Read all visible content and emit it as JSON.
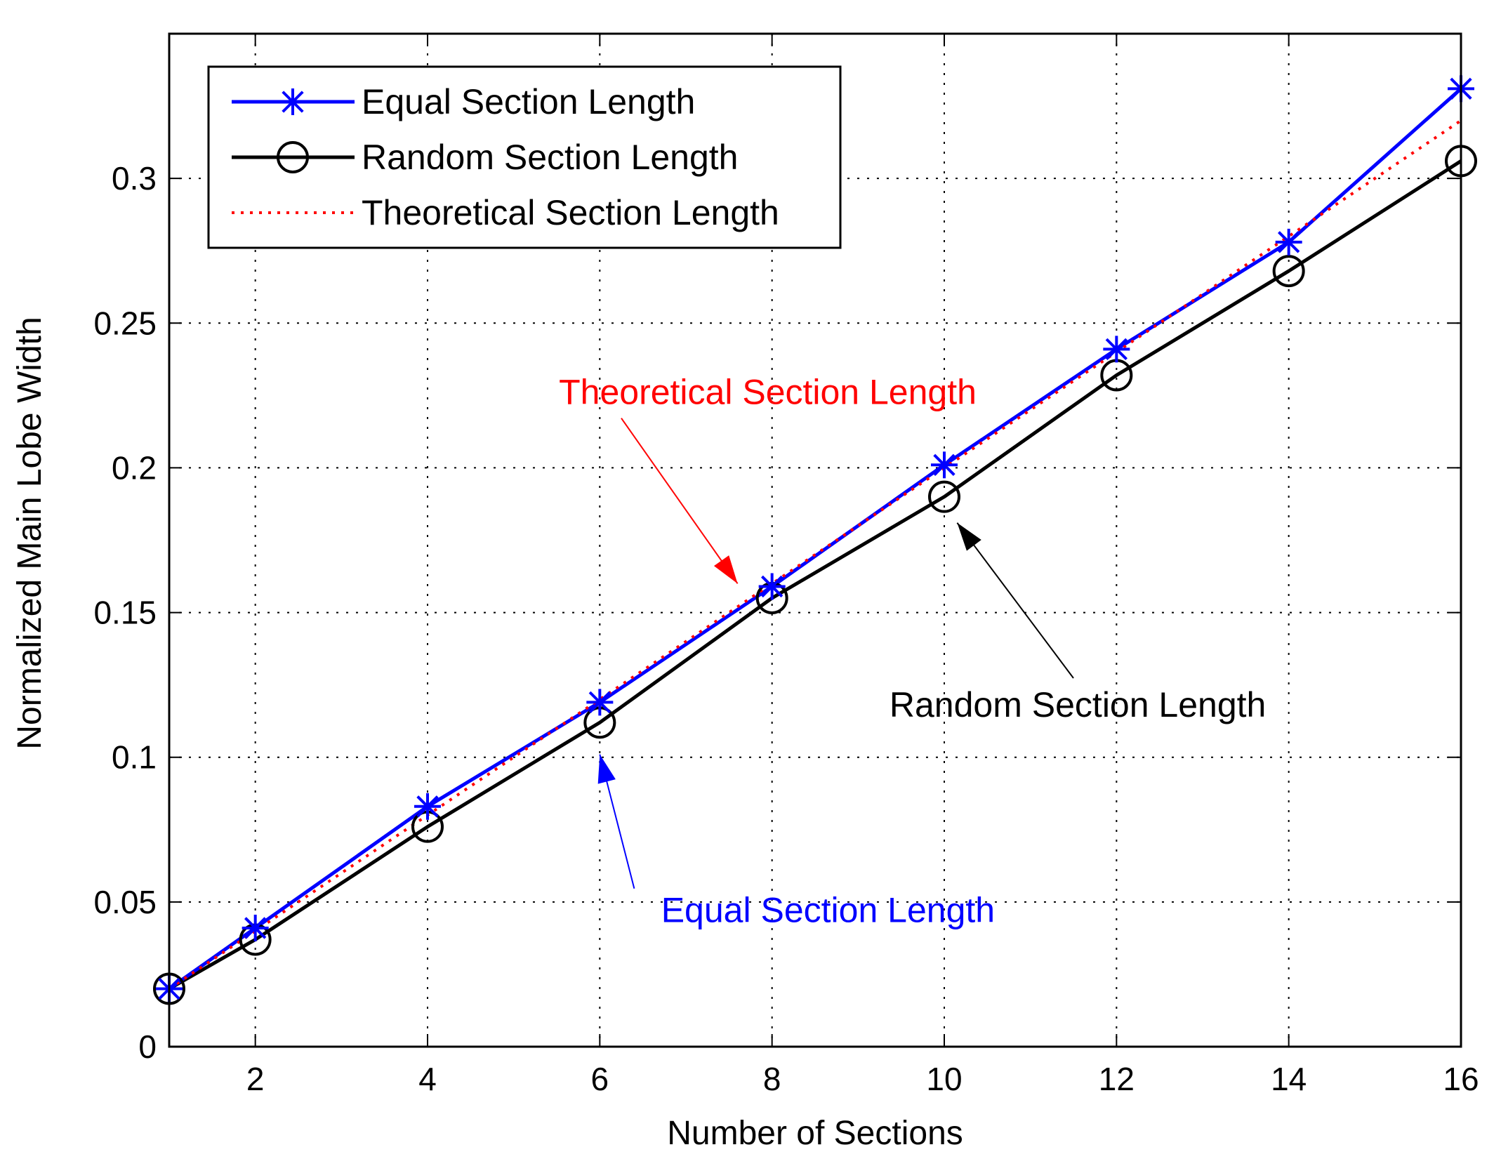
{
  "chart_data": {
    "type": "line",
    "xlabel": "Number of Sections",
    "ylabel": "Normalized Main Lobe Width",
    "xlim": [
      1,
      16
    ],
    "ylim": [
      0,
      0.35
    ],
    "xticks": [
      2,
      4,
      6,
      8,
      10,
      12,
      14,
      16
    ],
    "xtick_labels": [
      "2",
      "4",
      "6",
      "8",
      "10",
      "12",
      "14",
      "16"
    ],
    "yticks": [
      0,
      0.05,
      0.1,
      0.15,
      0.2,
      0.25,
      0.3
    ],
    "ytick_labels": [
      "0",
      "0.05",
      "0.1",
      "0.15",
      "0.2",
      "0.25",
      "0.3"
    ],
    "grid": true,
    "legend_position": "top-left",
    "series": [
      {
        "name": "Equal Section Length",
        "color": "#0000ff",
        "marker": "asterisk",
        "line_style": "solid",
        "x": [
          1,
          2,
          4,
          6,
          8,
          10,
          12,
          14,
          16
        ],
        "y": [
          0.02,
          0.041,
          0.083,
          0.119,
          0.159,
          0.201,
          0.241,
          0.278,
          0.331
        ]
      },
      {
        "name": "Random Section Length",
        "color": "#000000",
        "marker": "circle",
        "line_style": "solid",
        "x": [
          1,
          2,
          4,
          6,
          8,
          10,
          12,
          14,
          16
        ],
        "y": [
          0.02,
          0.037,
          0.076,
          0.112,
          0.155,
          0.19,
          0.232,
          0.268,
          0.306
        ]
      },
      {
        "name": "Theoretical Section Length",
        "color": "#ff0000",
        "marker": "none",
        "line_style": "dotted",
        "x": [
          1,
          2,
          4,
          6,
          8,
          10,
          12,
          14,
          16
        ],
        "y": [
          0.02,
          0.04,
          0.08,
          0.12,
          0.16,
          0.2,
          0.24,
          0.28,
          0.32
        ]
      }
    ],
    "annotations": [
      {
        "text": "Theoretical Section Length",
        "color": "#ff0000",
        "text_x": 7.95,
        "text_y": 0.222,
        "arrow_to_x": 7.6,
        "arrow_to_y": 0.16
      },
      {
        "text": "Random Section Length",
        "color": "#000000",
        "text_x": 11.55,
        "text_y": 0.114,
        "arrow_to_x": 10.15,
        "arrow_to_y": 0.181
      },
      {
        "text": "Equal Section Length",
        "color": "#0000ff",
        "text_x": 8.65,
        "text_y": 0.043,
        "arrow_to_x": 6,
        "arrow_to_y": 0.101
      }
    ]
  }
}
